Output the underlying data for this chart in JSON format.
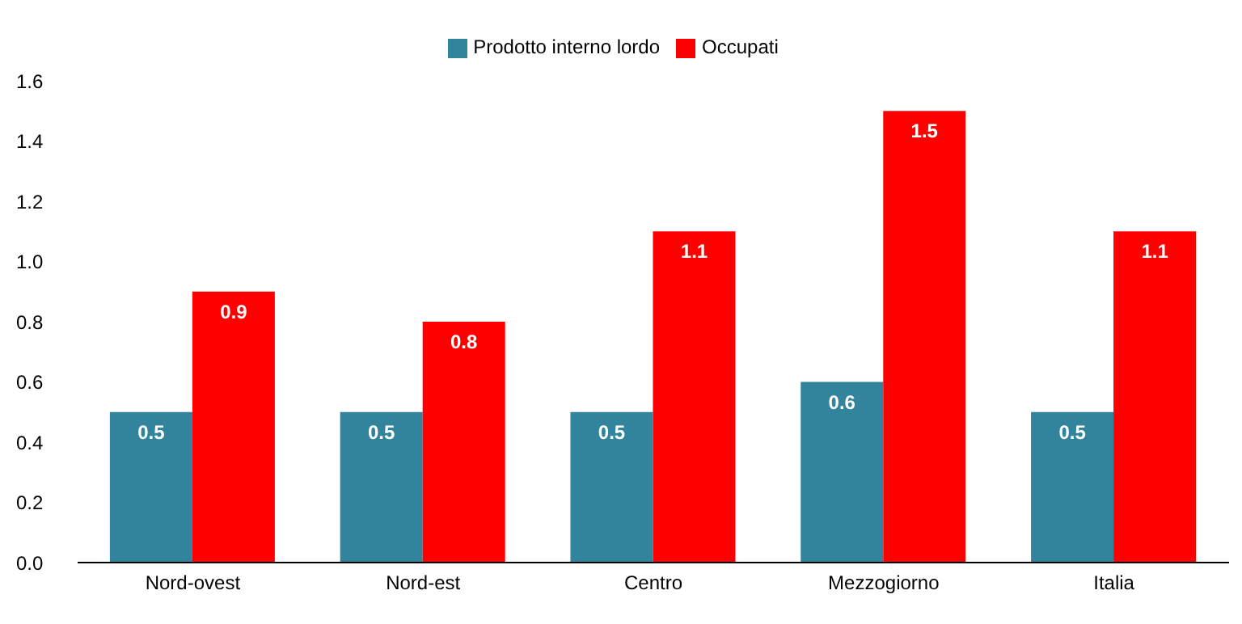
{
  "chart_data": {
    "type": "bar",
    "categories": [
      "Nord-ovest",
      "Nord-est",
      "Centro",
      "Mezzogiorno",
      "Italia"
    ],
    "series": [
      {
        "name": "Prodotto interno lordo",
        "color": "#31849b",
        "values": [
          0.5,
          0.5,
          0.5,
          0.6,
          0.5
        ]
      },
      {
        "name": "Occupati",
        "color": "#ff0000",
        "values": [
          0.9,
          0.8,
          1.1,
          1.5,
          1.1
        ]
      }
    ],
    "ylim": [
      0,
      1.6
    ],
    "yticks": [
      {
        "value": 0,
        "label": "0.0"
      },
      {
        "value": 0.2,
        "label": "0.2"
      },
      {
        "value": 0.4,
        "label": "0.4"
      },
      {
        "value": 0.6,
        "label": "0.6"
      },
      {
        "value": 0.8,
        "label": "0.8"
      },
      {
        "value": 1,
        "label": "1.0"
      },
      {
        "value": 1.2,
        "label": "1.2"
      },
      {
        "value": 1.4,
        "label": "1.4"
      },
      {
        "value": 1.6,
        "label": "1.6"
      }
    ],
    "data_labels": true,
    "legend": "top",
    "grid": false
  }
}
